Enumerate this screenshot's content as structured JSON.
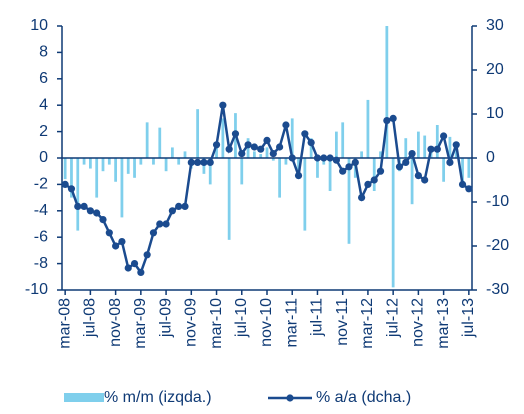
{
  "chart_data": {
    "type": "bar-line",
    "categories": [
      "mar-08",
      null,
      null,
      null,
      "jul-08",
      null,
      null,
      null,
      "nov-08",
      null,
      null,
      null,
      "mar-09",
      null,
      null,
      null,
      "jul-09",
      null,
      null,
      null,
      "nov-09",
      null,
      null,
      null,
      "mar-10",
      null,
      null,
      null,
      "jul-10",
      null,
      null,
      null,
      "nov-10",
      null,
      null,
      null,
      "mar-11",
      null,
      null,
      null,
      "jul-11",
      null,
      null,
      null,
      "nov-11",
      null,
      null,
      null,
      "mar-12",
      null,
      null,
      null,
      "jul-12",
      null,
      null,
      null,
      "nov-12",
      null,
      null,
      null,
      "mar-13",
      null,
      null,
      null,
      "jul-13"
    ],
    "series": [
      {
        "name": "% m/m (izqda.)",
        "color": "#7fcfec",
        "kind": "bar",
        "values": [
          -1.6,
          -3,
          -5.5,
          -0.5,
          -0.8,
          -3,
          -1,
          -0.5,
          -1.8,
          -4.5,
          -1.2,
          -1.5,
          -0.5,
          2.7,
          -0.5,
          2.3,
          -1,
          0.8,
          -0.5,
          0.5,
          -0.8,
          3.7,
          -1.2,
          -2,
          1.2,
          3,
          -6.2,
          3.4,
          -2,
          1.5,
          0.5,
          0.3,
          0.8,
          -0.2,
          -3,
          -0.5,
          3,
          -1,
          -5.5,
          1.5,
          -1.5,
          -0.5,
          -2.5,
          2,
          2.7,
          -6.5,
          -1.5,
          0.5,
          4.4,
          -2.5,
          0.5,
          10,
          -9.8,
          -1,
          1.5,
          -3.5,
          2,
          1.7,
          0.5,
          2.5,
          -1.8,
          1.6,
          1.2,
          -2,
          -1.5
        ]
      },
      {
        "name": "% a/a (dcha.)",
        "color": "#1b4b8f",
        "kind": "line",
        "axis": "y2",
        "values": [
          -6,
          -7,
          -11,
          -11,
          -12,
          -12.5,
          -14,
          -17,
          -20,
          -19,
          -25,
          -24,
          -26,
          -22,
          -17,
          -15,
          -15,
          -12,
          -11,
          -11,
          -1,
          -1,
          -1,
          -1,
          3,
          12,
          2,
          5.5,
          1,
          3,
          2.5,
          2,
          4,
          1,
          2.5,
          7.5,
          0,
          -4,
          5.5,
          3.5,
          0,
          0,
          0,
          -0.5,
          -3,
          -2,
          -1,
          -9,
          -6,
          -5,
          -3,
          8.5,
          9,
          -2,
          -1,
          1,
          -4,
          -5,
          2,
          2,
          5,
          -1,
          3,
          -6,
          -7
        ]
      }
    ],
    "ylim": [
      -10,
      10
    ],
    "yticks": [
      -10,
      -8,
      -6,
      -4,
      -2,
      0,
      2,
      4,
      6,
      8,
      10
    ],
    "y2lim": [
      -30,
      30
    ],
    "y2ticks": [
      -30,
      -20,
      -10,
      0,
      10,
      20,
      30
    ]
  }
}
